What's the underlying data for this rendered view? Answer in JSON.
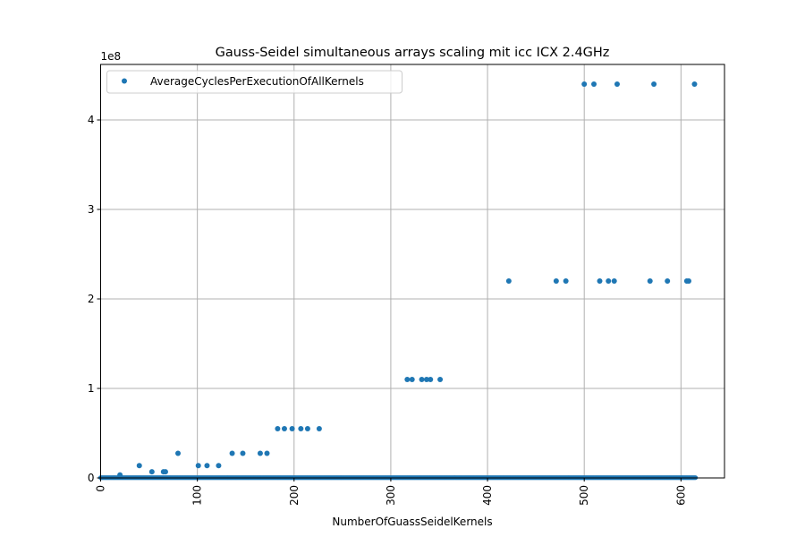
{
  "chart_data": {
    "type": "scatter",
    "title": "Gauss-Seidel simultaneous arrays scaling mit icc ICX 2.4GHz",
    "xlabel": "NumberOfGuassSeidelKernels",
    "ylabel": "",
    "y_offset_label": "1e8",
    "xlim": [
      0,
      645
    ],
    "ylim": [
      0,
      4.62
    ],
    "x_ticks": [
      0,
      100,
      200,
      300,
      400,
      500,
      600
    ],
    "x_tick_labels": [
      "0",
      "100",
      "200",
      "300",
      "400",
      "500",
      "600"
    ],
    "y_ticks": [
      0,
      1,
      2,
      3,
      4
    ],
    "y_tick_labels": [
      "0",
      "1",
      "2",
      "3",
      "4"
    ],
    "x_tick_rotation_deg": 90,
    "grid": true,
    "legend_position": "top-left",
    "color": "#1f77b4",
    "series": [
      {
        "name": "AverageCyclesPerExecutionOfAllKernels",
        "baseline_x_range": [
          0,
          615
        ],
        "baseline_y": 0.003,
        "points": [
          {
            "x": 20,
            "y": 0.034
          },
          {
            "x": 40,
            "y": 0.138
          },
          {
            "x": 53,
            "y": 0.069
          },
          {
            "x": 65,
            "y": 0.069
          },
          {
            "x": 67,
            "y": 0.069
          },
          {
            "x": 80,
            "y": 0.275
          },
          {
            "x": 101,
            "y": 0.138
          },
          {
            "x": 110,
            "y": 0.138
          },
          {
            "x": 122,
            "y": 0.138
          },
          {
            "x": 136,
            "y": 0.275
          },
          {
            "x": 147,
            "y": 0.275
          },
          {
            "x": 165,
            "y": 0.275
          },
          {
            "x": 172,
            "y": 0.275
          },
          {
            "x": 183,
            "y": 0.55
          },
          {
            "x": 190,
            "y": 0.55
          },
          {
            "x": 198,
            "y": 0.55
          },
          {
            "x": 207,
            "y": 0.55
          },
          {
            "x": 214,
            "y": 0.55
          },
          {
            "x": 226,
            "y": 0.55
          },
          {
            "x": 317,
            "y": 1.1
          },
          {
            "x": 322,
            "y": 1.1
          },
          {
            "x": 332,
            "y": 1.1
          },
          {
            "x": 337,
            "y": 1.1
          },
          {
            "x": 341,
            "y": 1.1
          },
          {
            "x": 351,
            "y": 1.1
          },
          {
            "x": 422,
            "y": 2.2
          },
          {
            "x": 471,
            "y": 2.2
          },
          {
            "x": 481,
            "y": 2.2
          },
          {
            "x": 516,
            "y": 2.2
          },
          {
            "x": 525,
            "y": 2.2
          },
          {
            "x": 531,
            "y": 2.2
          },
          {
            "x": 568,
            "y": 2.2
          },
          {
            "x": 586,
            "y": 2.2
          },
          {
            "x": 606,
            "y": 2.2
          },
          {
            "x": 608,
            "y": 2.2
          },
          {
            "x": 500,
            "y": 4.4
          },
          {
            "x": 510,
            "y": 4.4
          },
          {
            "x": 534,
            "y": 4.4
          },
          {
            "x": 572,
            "y": 4.4
          },
          {
            "x": 614,
            "y": 4.4
          }
        ]
      }
    ]
  }
}
